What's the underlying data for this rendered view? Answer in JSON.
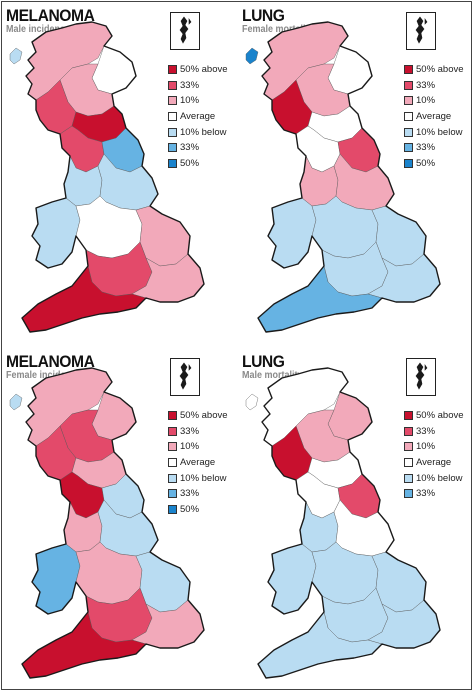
{
  "colors": {
    "50% above": "#c8102e",
    "33%": "#e34a6a",
    "10%": "#f2a9ba",
    "Average": "#ffffff",
    "10% below": "#b9dcf2",
    "33% below": "#66b3e3",
    "50% below": "#1a83cc",
    "outline": "#1a1a1a"
  },
  "panels": [
    {
      "title": "MELANOMA",
      "subtitle": "Male incidence",
      "legend": [
        {
          "label": "50% above",
          "key": "50% above"
        },
        {
          "label": "33%",
          "key": "33%"
        },
        {
          "label": "10%",
          "key": "10%"
        },
        {
          "label": "Average",
          "key": "Average"
        },
        {
          "label": "10% below",
          "key": "10% below"
        },
        {
          "label": "33%",
          "key": "33% below"
        },
        {
          "label": "50%",
          "key": "50% below"
        }
      ],
      "regions": {
        "highlands": "10%",
        "islands": "10% below",
        "grampian": "Average",
        "central": "10%",
        "westscot": "33%",
        "borders": "50% above",
        "cumbria": "33%",
        "northeast": "33% below",
        "yorkshire": "10% below",
        "northwest": "10% below",
        "midlands": "Average",
        "eastanglia": "10%",
        "wales": "10% below",
        "southwest": "50% above",
        "south": "33%",
        "southeast": "10%"
      }
    },
    {
      "title": "LUNG",
      "subtitle": "Female mortality",
      "legend": [
        {
          "label": "50% above",
          "key": "50% above"
        },
        {
          "label": "33%",
          "key": "33%"
        },
        {
          "label": "10%",
          "key": "10%"
        },
        {
          "label": "Average",
          "key": "Average"
        },
        {
          "label": "10% below",
          "key": "10% below"
        },
        {
          "label": "33%",
          "key": "33% below"
        },
        {
          "label": "50%",
          "key": "50% below"
        }
      ],
      "regions": {
        "highlands": "10%",
        "islands": "50% below",
        "grampian": "Average",
        "central": "10%",
        "westscot": "50% above",
        "borders": "Average",
        "cumbria": "Average",
        "northeast": "33%",
        "yorkshire": "10%",
        "northwest": "10%",
        "midlands": "10% below",
        "eastanglia": "10% below",
        "wales": "10% below",
        "southwest": "33% below",
        "south": "10% below",
        "southeast": "10% below"
      }
    },
    {
      "title": "MELANOMA",
      "subtitle": "Female incidence",
      "legend": [
        {
          "label": "50% above",
          "key": "50% above"
        },
        {
          "label": "33%",
          "key": "33%"
        },
        {
          "label": "10%",
          "key": "10%"
        },
        {
          "label": "Average",
          "key": "Average"
        },
        {
          "label": "10% below",
          "key": "10% below"
        },
        {
          "label": "33%",
          "key": "33% below"
        },
        {
          "label": "50%",
          "key": "50% below"
        }
      ],
      "regions": {
        "highlands": "10%",
        "islands": "10% below",
        "grampian": "10%",
        "central": "33%",
        "westscot": "33%",
        "borders": "10%",
        "cumbria": "50% above",
        "northeast": "10% below",
        "yorkshire": "10% below",
        "northwest": "10%",
        "midlands": "10%",
        "eastanglia": "10% below",
        "wales": "33% below",
        "southwest": "50% above",
        "south": "33%",
        "southeast": "10%"
      }
    },
    {
      "title": "LUNG",
      "subtitle": "Male mortality",
      "legend": [
        {
          "label": "50% above",
          "key": "50% above"
        },
        {
          "label": "33%",
          "key": "33%"
        },
        {
          "label": "10%",
          "key": "10%"
        },
        {
          "label": "Average",
          "key": "Average"
        },
        {
          "label": "10% below",
          "key": "10% below"
        },
        {
          "label": "33%",
          "key": "33% below"
        }
      ],
      "regions": {
        "highlands": "Average",
        "islands": "Average",
        "grampian": "10%",
        "central": "10%",
        "westscot": "50% above",
        "borders": "Average",
        "cumbria": "Average",
        "northeast": "33%",
        "yorkshire": "Average",
        "northwest": "10% below",
        "midlands": "10% below",
        "eastanglia": "10% below",
        "wales": "10% below",
        "southwest": "10% below",
        "south": "10% below",
        "southeast": "10% below"
      }
    }
  ]
}
